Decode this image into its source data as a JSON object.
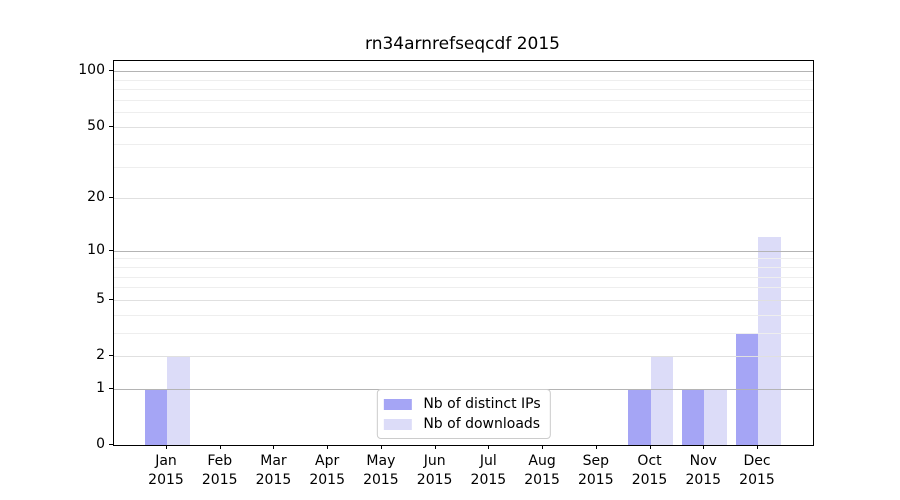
{
  "chart_data": {
    "type": "bar",
    "title": "rn34arnrefseqcdf 2015",
    "categories": [
      "Jan",
      "Feb",
      "Mar",
      "Apr",
      "May",
      "Jun",
      "Jul",
      "Aug",
      "Sep",
      "Oct",
      "Nov",
      "Dec"
    ],
    "category_year": "2015",
    "series": [
      {
        "name": "Nb of distinct IPs",
        "color": "#a5a5f5",
        "values": [
          1,
          0,
          0,
          0,
          0,
          0,
          0,
          0,
          0,
          1,
          1,
          3
        ]
      },
      {
        "name": "Nb of downloads",
        "color": "#dcdcf8",
        "values": [
          2,
          0,
          0,
          0,
          0,
          0,
          0,
          0,
          0,
          2,
          1,
          12
        ]
      }
    ],
    "y_axis": {
      "scale": "log1p",
      "tick_values": [
        0,
        1,
        2,
        5,
        10,
        20,
        50,
        100
      ],
      "major_gridlines": [
        1,
        10,
        100
      ],
      "mid_gridlines": [
        2,
        5,
        20,
        50
      ],
      "minor_gridlines": [
        3,
        4,
        6,
        7,
        8,
        9,
        30,
        40,
        60,
        70,
        80,
        90
      ],
      "ylim": [
        0,
        112
      ]
    },
    "legend": {
      "position": "lower center",
      "entries": [
        "Nb of distinct IPs",
        "Nb of downloads"
      ]
    },
    "grid": true,
    "colors": {
      "bar_distinct_ips": "#a5a5f5",
      "bar_downloads": "#dcdcf8",
      "gridline_major": "#b4b4b4",
      "gridline_mid": "#e0e0e0",
      "gridline_minor": "#eeeeee",
      "axis": "#000000",
      "legend_border": "#cccccc"
    }
  }
}
